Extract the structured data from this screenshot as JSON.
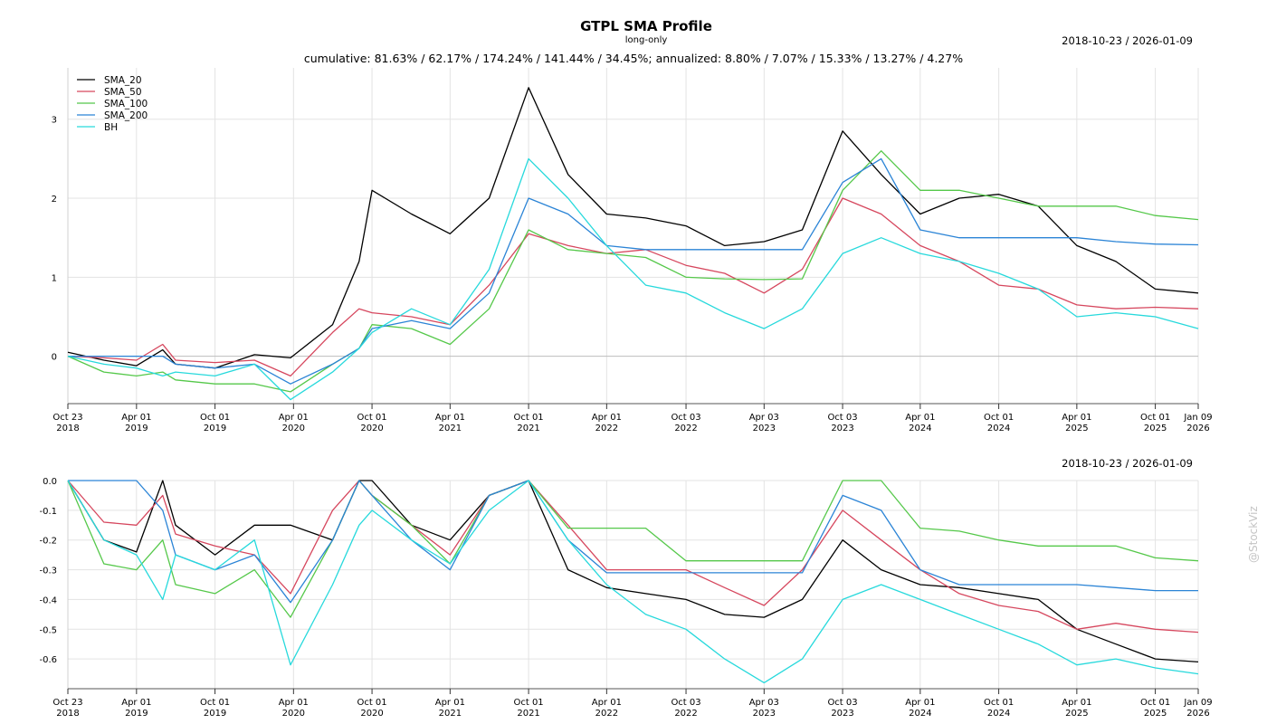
{
  "header": {
    "title": "GTPL SMA Profile",
    "subtitle": "long-only",
    "stats": "cumulative: 81.63% / 62.17% / 174.24% / 141.44% / 34.45%; annualized: 8.80% / 7.07% / 15.33% / 13.27% / 4.27%",
    "date_range_top": "2018-10-23 / 2026-01-09",
    "date_range_bottom": "2018-10-23 / 2026-01-09",
    "watermark": "@StockViz"
  },
  "colors": {
    "SMA_20": "#000000",
    "SMA_50": "#d6475e",
    "SMA_100": "#55c84a",
    "SMA_200": "#2b84d6",
    "BH": "#27d9dc"
  },
  "chart_data": [
    {
      "type": "line",
      "title": "cumulative returns",
      "legend": "top-left",
      "grid": true,
      "x_ticks": [
        "Oct 23\n2018",
        "Apr 01\n2019",
        "Oct 01\n2019",
        "Apr 01\n2020",
        "Oct 01\n2020",
        "Apr 01\n2021",
        "Oct 01\n2021",
        "Apr 01\n2022",
        "Oct 03\n2022",
        "Apr 03\n2023",
        "Oct 03\n2023",
        "Apr 01\n2024",
        "Oct 01\n2024",
        "Apr 01\n2025",
        "Oct 01\n2025",
        "Jan 09\n2026"
      ],
      "y_ticks": [
        "0",
        "1",
        "2",
        "3"
      ],
      "ylim": [
        -0.6,
        3.65
      ],
      "x": [
        "2018-10-23",
        "2019-01-15",
        "2019-04-01",
        "2019-06-01",
        "2019-07-01",
        "2019-10-01",
        "2020-01-01",
        "2020-03-25",
        "2020-07-01",
        "2020-09-01",
        "2020-10-01",
        "2021-01-01",
        "2021-04-01",
        "2021-07-01",
        "2021-10-01",
        "2022-01-01",
        "2022-04-01",
        "2022-07-01",
        "2022-10-03",
        "2023-01-01",
        "2023-04-03",
        "2023-07-01",
        "2023-10-03",
        "2024-01-01",
        "2024-04-01",
        "2024-07-01",
        "2024-10-01",
        "2025-01-01",
        "2025-04-01",
        "2025-07-01",
        "2025-10-01",
        "2026-01-09"
      ],
      "series": [
        {
          "name": "SMA_20",
          "values": [
            0.05,
            -0.05,
            -0.12,
            0.08,
            -0.1,
            -0.15,
            0.02,
            -0.02,
            0.4,
            1.2,
            2.1,
            1.8,
            1.55,
            2.0,
            3.4,
            2.3,
            1.8,
            1.75,
            1.65,
            1.4,
            1.45,
            1.6,
            2.85,
            2.3,
            1.8,
            2.0,
            2.05,
            1.9,
            1.4,
            1.2,
            0.85,
            0.8
          ]
        },
        {
          "name": "SMA_50",
          "values": [
            0.0,
            -0.02,
            -0.05,
            0.15,
            -0.05,
            -0.08,
            -0.05,
            -0.25,
            0.3,
            0.6,
            0.55,
            0.5,
            0.4,
            0.9,
            1.55,
            1.4,
            1.3,
            1.35,
            1.15,
            1.05,
            0.8,
            1.1,
            2.0,
            1.8,
            1.4,
            1.2,
            0.9,
            0.85,
            0.65,
            0.6,
            0.62,
            0.6
          ]
        },
        {
          "name": "SMA_100",
          "values": [
            0.0,
            -0.2,
            -0.25,
            -0.2,
            -0.3,
            -0.35,
            -0.35,
            -0.45,
            -0.1,
            0.1,
            0.4,
            0.35,
            0.15,
            0.6,
            1.6,
            1.35,
            1.3,
            1.25,
            1.0,
            0.98,
            0.97,
            0.98,
            2.1,
            2.6,
            2.1,
            2.1,
            2.0,
            1.9,
            1.9,
            1.9,
            1.78,
            1.73
          ]
        },
        {
          "name": "SMA_200",
          "values": [
            0.0,
            0.0,
            0.0,
            0.0,
            -0.1,
            -0.15,
            -0.1,
            -0.35,
            -0.1,
            0.1,
            0.35,
            0.45,
            0.35,
            0.8,
            2.0,
            1.8,
            1.4,
            1.35,
            1.35,
            1.35,
            1.35,
            1.35,
            2.2,
            2.5,
            1.6,
            1.5,
            1.5,
            1.5,
            1.5,
            1.45,
            1.42,
            1.41
          ]
        },
        {
          "name": "BH",
          "values": [
            0.0,
            -0.1,
            -0.15,
            -0.25,
            -0.2,
            -0.25,
            -0.1,
            -0.55,
            -0.2,
            0.1,
            0.3,
            0.6,
            0.4,
            1.1,
            2.5,
            2.0,
            1.4,
            0.9,
            0.8,
            0.55,
            0.35,
            0.6,
            1.3,
            1.5,
            1.3,
            1.2,
            1.05,
            0.85,
            0.5,
            0.55,
            0.5,
            0.35
          ]
        }
      ]
    },
    {
      "type": "line",
      "title": "drawdown",
      "grid": true,
      "x_ticks": [
        "Oct 23\n2018",
        "Apr 01\n2019",
        "Oct 01\n2019",
        "Apr 01\n2020",
        "Oct 01\n2020",
        "Apr 01\n2021",
        "Oct 01\n2021",
        "Apr 01\n2022",
        "Oct 03\n2022",
        "Apr 03\n2023",
        "Oct 03\n2023",
        "Apr 01\n2024",
        "Oct 01\n2024",
        "Apr 01\n2025",
        "Oct 01\n2025",
        "Jan 09\n2026"
      ],
      "y_ticks": [
        "0.0",
        "-0.1",
        "-0.2",
        "-0.3",
        "-0.4",
        "-0.5",
        "-0.6"
      ],
      "ylim": [
        -0.7,
        0.0
      ],
      "x": [
        "2018-10-23",
        "2019-01-15",
        "2019-04-01",
        "2019-06-01",
        "2019-07-01",
        "2019-10-01",
        "2020-01-01",
        "2020-03-25",
        "2020-07-01",
        "2020-09-01",
        "2020-10-01",
        "2021-01-01",
        "2021-04-01",
        "2021-07-01",
        "2021-10-01",
        "2022-01-01",
        "2022-04-01",
        "2022-07-01",
        "2022-10-03",
        "2023-01-01",
        "2023-04-03",
        "2023-07-01",
        "2023-10-03",
        "2024-01-01",
        "2024-04-01",
        "2024-07-01",
        "2024-10-01",
        "2025-01-01",
        "2025-04-01",
        "2025-07-01",
        "2025-10-01",
        "2026-01-09"
      ],
      "series": [
        {
          "name": "SMA_20",
          "values": [
            0.0,
            -0.2,
            -0.24,
            0.0,
            -0.15,
            -0.25,
            -0.15,
            -0.15,
            -0.2,
            0.0,
            0.0,
            -0.15,
            -0.2,
            -0.05,
            0.0,
            -0.3,
            -0.36,
            -0.38,
            -0.4,
            -0.45,
            -0.46,
            -0.4,
            -0.2,
            -0.3,
            -0.35,
            -0.36,
            -0.38,
            -0.4,
            -0.5,
            -0.55,
            -0.6,
            -0.61
          ]
        },
        {
          "name": "SMA_50",
          "values": [
            0.0,
            -0.14,
            -0.15,
            -0.05,
            -0.18,
            -0.22,
            -0.25,
            -0.38,
            -0.1,
            0.0,
            -0.05,
            -0.15,
            -0.25,
            -0.05,
            0.0,
            -0.15,
            -0.3,
            -0.3,
            -0.3,
            -0.36,
            -0.42,
            -0.3,
            -0.1,
            -0.2,
            -0.3,
            -0.38,
            -0.42,
            -0.44,
            -0.5,
            -0.48,
            -0.5,
            -0.51
          ]
        },
        {
          "name": "SMA_100",
          "values": [
            0.0,
            -0.28,
            -0.3,
            -0.2,
            -0.35,
            -0.38,
            -0.3,
            -0.46,
            -0.2,
            0.0,
            -0.05,
            -0.15,
            -0.28,
            -0.05,
            0.0,
            -0.16,
            -0.16,
            -0.16,
            -0.27,
            -0.27,
            -0.27,
            -0.27,
            0.0,
            0.0,
            -0.16,
            -0.17,
            -0.2,
            -0.22,
            -0.22,
            -0.22,
            -0.26,
            -0.27
          ]
        },
        {
          "name": "SMA_200",
          "values": [
            0.0,
            0.0,
            0.0,
            -0.1,
            -0.25,
            -0.3,
            -0.25,
            -0.41,
            -0.2,
            0.0,
            -0.05,
            -0.2,
            -0.3,
            -0.05,
            0.0,
            -0.2,
            -0.31,
            -0.31,
            -0.31,
            -0.31,
            -0.31,
            -0.31,
            -0.05,
            -0.1,
            -0.3,
            -0.35,
            -0.35,
            -0.35,
            -0.35,
            -0.36,
            -0.37,
            -0.37
          ]
        },
        {
          "name": "BH",
          "values": [
            0.0,
            -0.2,
            -0.25,
            -0.4,
            -0.25,
            -0.3,
            -0.2,
            -0.62,
            -0.35,
            -0.15,
            -0.1,
            -0.2,
            -0.28,
            -0.1,
            0.0,
            -0.2,
            -0.35,
            -0.45,
            -0.5,
            -0.6,
            -0.68,
            -0.6,
            -0.4,
            -0.35,
            -0.4,
            -0.45,
            -0.5,
            -0.55,
            -0.62,
            -0.6,
            -0.63,
            -0.65
          ]
        }
      ]
    }
  ]
}
